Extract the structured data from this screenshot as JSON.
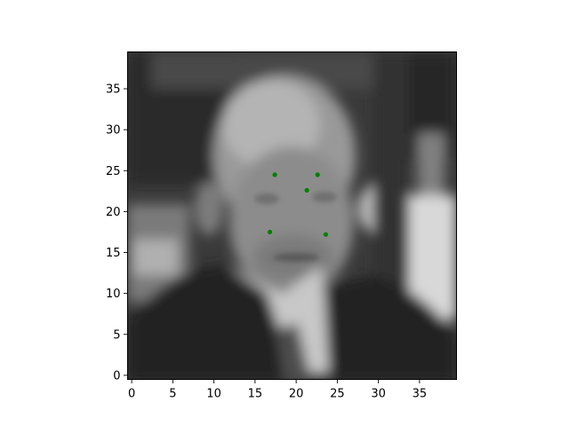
{
  "chart_data": {
    "type": "scatter",
    "title": "",
    "xlabel": "",
    "ylabel": "",
    "background": "grayscale face photograph, 40x40 pixel grid",
    "xlim": [
      -0.5,
      39.5
    ],
    "ylim": [
      39.5,
      -0.5
    ],
    "y_inverted": true,
    "grid": false,
    "legend": "none",
    "x_ticks": [
      0,
      5,
      10,
      15,
      20,
      25,
      30,
      35
    ],
    "y_ticks": [
      0,
      5,
      10,
      15,
      20,
      25,
      30,
      35
    ],
    "x_tick_labels": [
      "0",
      "5",
      "10",
      "15",
      "20",
      "25",
      "30",
      "35"
    ],
    "y_tick_labels": [
      "0",
      "5",
      "10",
      "15",
      "20",
      "25",
      "30",
      "35"
    ],
    "marker_color": "#008000",
    "points": [
      {
        "x": 16.8,
        "y": 17.5
      },
      {
        "x": 23.6,
        "y": 17.2
      },
      {
        "x": 21.3,
        "y": 22.6
      },
      {
        "x": 17.4,
        "y": 24.5
      },
      {
        "x": 22.6,
        "y": 24.5
      }
    ]
  }
}
